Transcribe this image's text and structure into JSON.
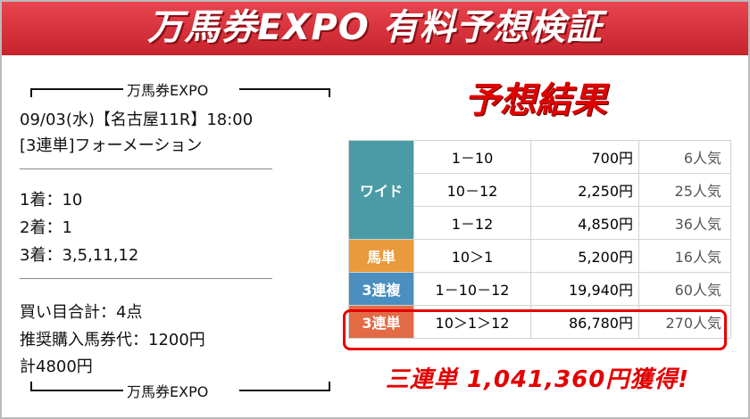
{
  "banner": {
    "title": "万馬券EXPO 有料予想検証"
  },
  "ticket": {
    "brand": "万馬券EXPO",
    "race_line": "09/03(水)【名古屋11R】18:00",
    "bet_type": "[3連単]フォーメーション",
    "places": [
      "1着：10",
      "2着：1",
      "3着：3,5,11,12"
    ],
    "total_points": "買い目合計：4点",
    "unit_cost": "推奨購入馬券代：1200円",
    "total_cost": "計4800円"
  },
  "result": {
    "title": "予想結果",
    "rows": [
      {
        "category": "ワイド",
        "color": "#4a9ba5",
        "entries": [
          {
            "combo": "1－10",
            "payout": "700円",
            "popularity": "6人気"
          },
          {
            "combo": "10－12",
            "payout": "2,250円",
            "popularity": "25人気"
          },
          {
            "combo": "1－12",
            "payout": "4,850円",
            "popularity": "36人気"
          }
        ]
      },
      {
        "category": "馬単",
        "color": "#e99a3c",
        "entries": [
          {
            "combo": "10＞1",
            "payout": "5,200円",
            "popularity": "16人気"
          }
        ]
      },
      {
        "category": "3連複",
        "color": "#4a8fc0",
        "entries": [
          {
            "combo": "1－10－12",
            "payout": "19,940円",
            "popularity": "60人気"
          }
        ]
      },
      {
        "category": "3連単",
        "color": "#e26b45",
        "entries": [
          {
            "combo": "10＞1＞12",
            "payout": "86,780円",
            "popularity": "270人気"
          }
        ]
      }
    ],
    "jackpot": "三連単 1,041,360円獲得!"
  }
}
